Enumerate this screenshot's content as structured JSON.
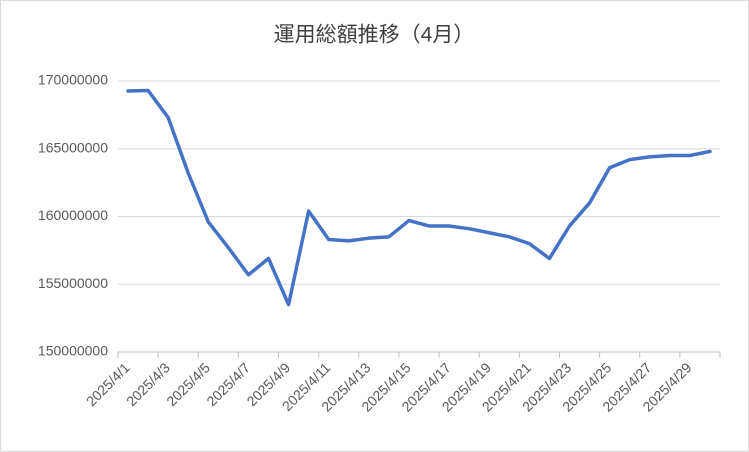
{
  "chart_data": {
    "type": "line",
    "title": "運用総額推移（4月）",
    "categories": [
      "2025/4/1",
      null,
      "2025/4/3",
      null,
      "2025/4/5",
      null,
      "2025/4/7",
      null,
      "2025/4/9",
      null,
      "2025/4/11",
      null,
      "2025/4/13",
      null,
      "2025/4/15",
      null,
      "2025/4/17",
      null,
      "2025/4/19",
      null,
      "2025/4/21",
      null,
      "2025/4/23",
      null,
      "2025/4/25",
      null,
      "2025/4/27",
      null,
      "2025/4/29",
      null
    ],
    "values": [
      169260000,
      169300000,
      167300000,
      163200000,
      159600000,
      157700000,
      155700000,
      156900000,
      153500000,
      160400000,
      158300000,
      158200000,
      158400000,
      158500000,
      159700000,
      159300000,
      159300000,
      159100000,
      158800000,
      158500000,
      158000000,
      156900000,
      159300000,
      161000000,
      163600000,
      164200000,
      164400000,
      164500000,
      164500000,
      164800000
    ],
    "color": "#4472c4",
    "ylim": [
      150000000,
      170000000
    ],
    "yticks": [
      150000000,
      155000000,
      160000000,
      165000000,
      170000000
    ],
    "grid": true
  }
}
